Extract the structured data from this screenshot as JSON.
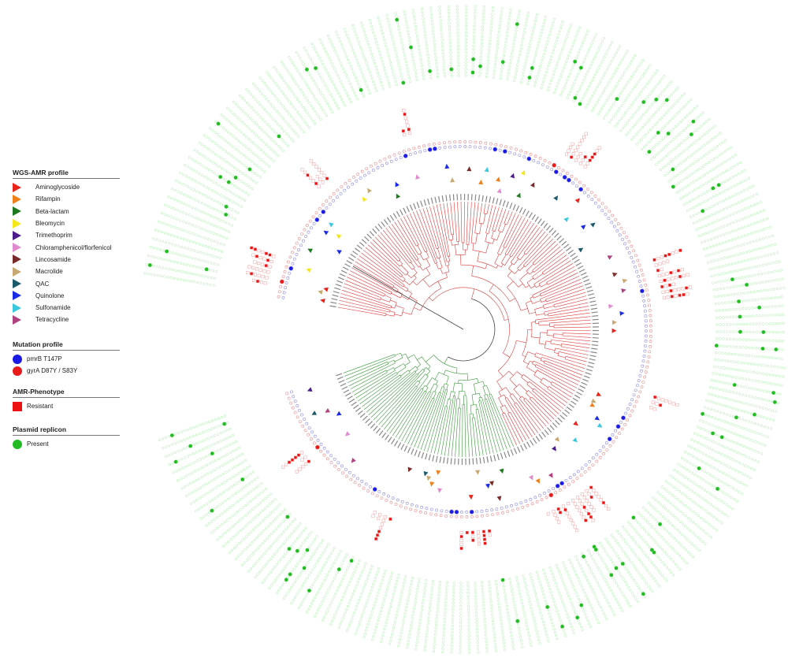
{
  "legends": {
    "amr_profile": {
      "title": "WGS-AMR profile",
      "items": [
        {
          "label": "Aminoglycoside",
          "color": "#e8231c"
        },
        {
          "label": "Rifampin",
          "color": "#f07f1a"
        },
        {
          "label": "Beta-lactam",
          "color": "#1e7a1e"
        },
        {
          "label": "Bleomycin",
          "color": "#f5e61a"
        },
        {
          "label": "Trimethoprim",
          "color": "#4b1a8c"
        },
        {
          "label": "Chloramphenicol/florfenicol",
          "color": "#e08ad0"
        },
        {
          "label": "Lincosamide",
          "color": "#7a2a2a"
        },
        {
          "label": "Macrolide",
          "color": "#c8a870"
        },
        {
          "label": "QAC",
          "color": "#1a5a6a"
        },
        {
          "label": "Quinolone",
          "color": "#1a2ae8"
        },
        {
          "label": "Sulfonamide",
          "color": "#3ac8e0"
        },
        {
          "label": "Tetracycline",
          "color": "#b04080"
        }
      ]
    },
    "mutation_profile": {
      "title": "Mutation profile",
      "items": [
        {
          "label": "pmrB T147P",
          "color": "#1a1ae8"
        },
        {
          "label": "gyrA D87Y / S83Y",
          "color": "#e81a1a"
        }
      ]
    },
    "amr_phenotype": {
      "title": "AMR-Phenotype",
      "items": [
        {
          "label": "Resistant",
          "color": "#ee1111"
        }
      ]
    },
    "plasmid_replicon": {
      "title": "Plasmid replicon",
      "items": [
        {
          "label": "Present",
          "color": "#22bb22"
        }
      ]
    }
  },
  "colors": {
    "tree_clade_red": "#e03a3a",
    "tree_clade_green": "#3a9a3a",
    "tree_root": "#444444",
    "ring_red": "#f08a8a",
    "ring_blue": "#8a8af0",
    "phenotype_empty": "#f2a0a0",
    "plasmid_empty": "#9be89b"
  }
}
